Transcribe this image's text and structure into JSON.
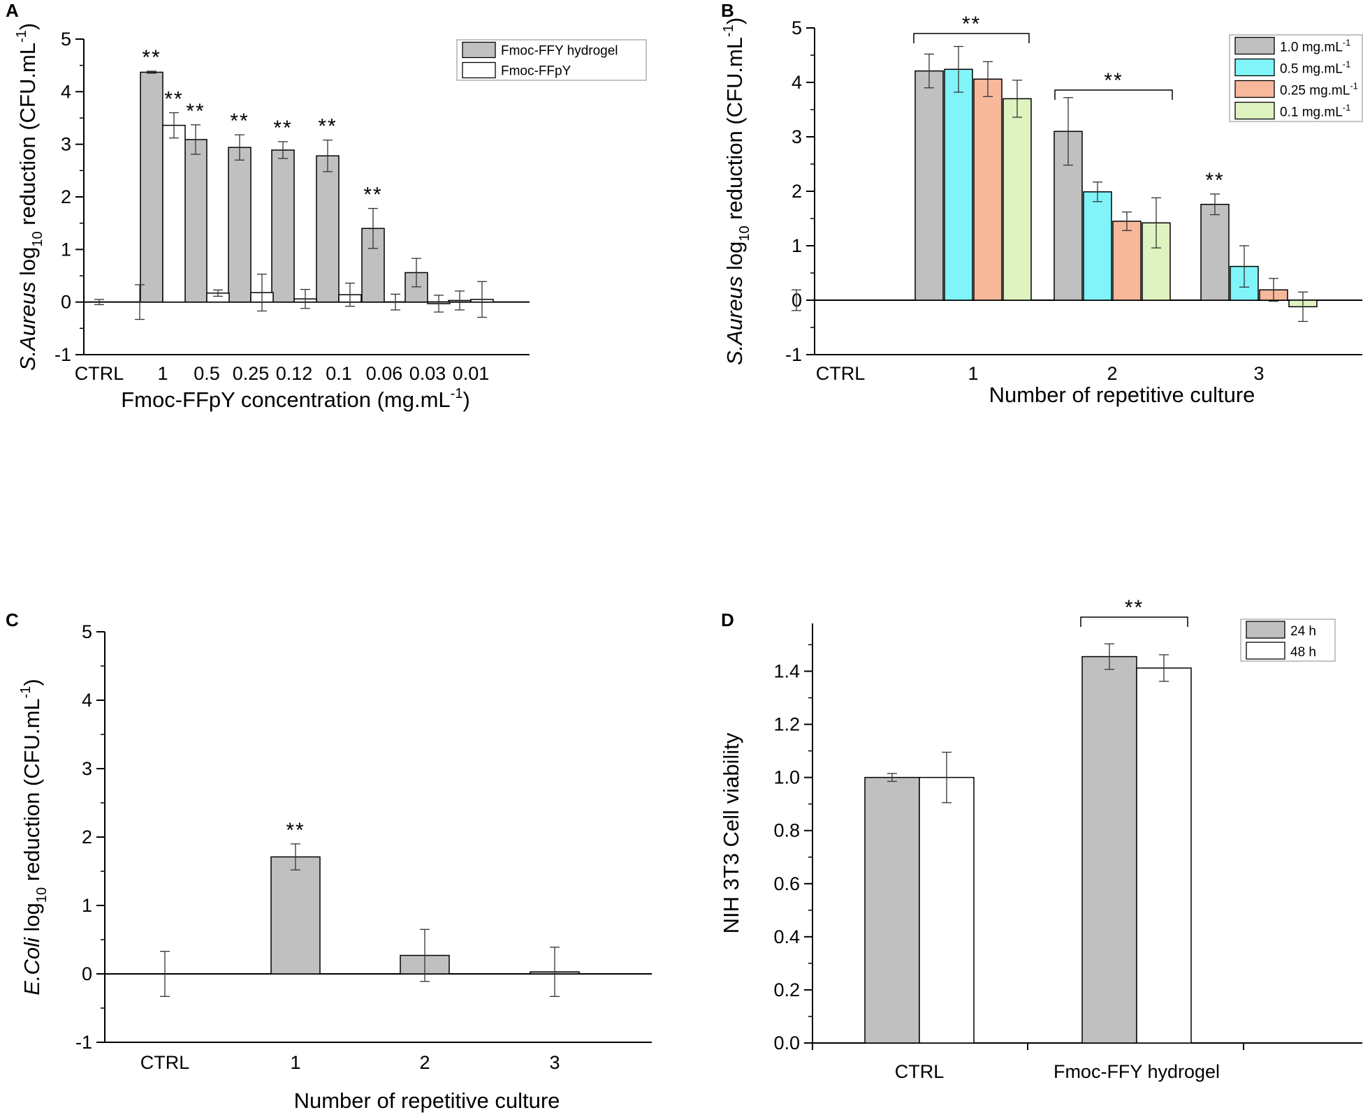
{
  "chart_data": [
    {
      "panel": "A",
      "type": "bar",
      "title": "",
      "xlabel": "Fmoc-FFpY concentration (mg.mL",
      "xlabel_sup": "-1",
      "xlabel_tail": ")",
      "ylabel_italic": "S.Aureus",
      "ylabel_mid": " log",
      "ylabel_sub": "10",
      "ylabel_tail": " reduction (CFU.mL",
      "ylabel_sup": "-1",
      "ylabel_end": ")",
      "ylim": [
        -1,
        5
      ],
      "yticks": [
        -1,
        0,
        1,
        2,
        3,
        4,
        5
      ],
      "legend_position": "top-right",
      "categories": [
        "CTRL",
        "1",
        "0.5",
        "0.25",
        "0.12",
        "0.1",
        "0.06",
        "0.03",
        "0.01"
      ],
      "series": [
        {
          "name": "Fmoc-FFY hydrogel",
          "color": "#c0c0c0",
          "values": [
            0.0,
            4.37,
            3.09,
            2.94,
            2.89,
            2.78,
            1.4,
            0.56,
            0.03
          ],
          "errors": [
            0.05,
            0.02,
            0.28,
            0.24,
            0.16,
            0.3,
            0.38,
            0.27,
            0.18
          ]
        },
        {
          "name": "Fmoc-FFpY",
          "color": "#ffffff",
          "values": [
            0.0,
            3.36,
            0.17,
            0.18,
            0.06,
            0.14,
            0.0,
            -0.03,
            0.05
          ],
          "errors": [
            0.33,
            0.24,
            0.06,
            0.35,
            0.18,
            0.22,
            0.15,
            0.16,
            0.34
          ]
        }
      ],
      "significance": [
        {
          "category_index": 1,
          "series_index": 0,
          "label": "**"
        },
        {
          "category_index": 1,
          "series_index": 1,
          "label": "**"
        },
        {
          "category_index": 2,
          "series_index": 0,
          "label": "**"
        },
        {
          "category_index": 3,
          "series_index": 0,
          "label": "**"
        },
        {
          "category_index": 4,
          "series_index": 0,
          "label": "**"
        },
        {
          "category_index": 5,
          "series_index": 0,
          "label": "**"
        },
        {
          "category_index": 6,
          "series_index": 0,
          "label": "**"
        }
      ]
    },
    {
      "panel": "B",
      "type": "bar",
      "title": "",
      "xlabel": "Number of repetitive culture",
      "ylabel_italic": "S.Aureus",
      "ylabel_mid": " log",
      "ylabel_sub": "10",
      "ylabel_tail": " reduction (CFU.mL",
      "ylabel_sup": "-1",
      "ylabel_end": ")",
      "ylim": [
        -1,
        5
      ],
      "yticks": [
        -1,
        0,
        1,
        2,
        3,
        4,
        5
      ],
      "legend_position": "top-right",
      "categories": [
        "CTRL",
        "1",
        "2",
        "3"
      ],
      "series": [
        {
          "name": "1.0 mg.mL",
          "sup": "-1",
          "color": "#c0c0c0",
          "values": [
            0.0,
            4.21,
            3.1,
            1.76
          ],
          "errors": [
            0.19,
            0.31,
            0.62,
            0.19
          ]
        },
        {
          "name": "0.5 mg.mL",
          "sup": "-1",
          "color": "#80f4f8",
          "values": [
            null,
            4.24,
            1.99,
            0.62
          ],
          "errors": [
            null,
            0.42,
            0.18,
            0.38
          ]
        },
        {
          "name": "0.25 mg.mL",
          "sup": "-1",
          "color": "#f8b89c",
          "values": [
            null,
            4.06,
            1.45,
            0.19
          ],
          "errors": [
            null,
            0.32,
            0.17,
            0.21
          ]
        },
        {
          "name": "0.1 mg.mL",
          "sup": "-1",
          "color": "#def3c0",
          "values": [
            null,
            3.7,
            1.42,
            -0.12
          ],
          "errors": [
            null,
            0.34,
            0.46,
            0.27
          ]
        }
      ],
      "significance": [
        {
          "bracket_categories": [
            1
          ],
          "label": "**"
        },
        {
          "bracket_categories": [
            2
          ],
          "label": "**"
        },
        {
          "category_index": 3,
          "series_index": 0,
          "label": "**"
        }
      ]
    },
    {
      "panel": "C",
      "type": "bar",
      "title": "",
      "xlabel": "Number of repetitive culture",
      "ylabel_italic": "E.Coli",
      "ylabel_mid": " log",
      "ylabel_sub": "10",
      "ylabel_tail": " reduction (CFU.mL",
      "ylabel_sup": "-1",
      "ylabel_end": ")",
      "ylim": [
        -1,
        5
      ],
      "yticks": [
        -1,
        0,
        1,
        2,
        3,
        4,
        5
      ],
      "categories": [
        "CTRL",
        "1",
        "2",
        "3"
      ],
      "series": [
        {
          "name": "E.Coli",
          "color": "#c0c0c0",
          "values": [
            0.0,
            1.71,
            0.27,
            0.03
          ],
          "errors": [
            0.33,
            0.19,
            0.38,
            0.36
          ]
        }
      ],
      "significance": [
        {
          "category_index": 1,
          "series_index": 0,
          "label": "**"
        }
      ]
    },
    {
      "panel": "D",
      "type": "bar",
      "title": "",
      "xlabel": "",
      "ylabel": "NIH 3T3 Cell viability",
      "ylim": [
        0,
        1.58
      ],
      "yticks": [
        0.0,
        0.2,
        0.4,
        0.6,
        0.8,
        1.0,
        1.2,
        1.4
      ],
      "ytick_labels": [
        "0.0",
        "0.2",
        "0.4",
        "0.6",
        "0.8",
        "1.0",
        "1.2",
        "1.4"
      ],
      "legend_position": "top-right",
      "categories": [
        "CTRL",
        "Fmoc-FFY hydrogel"
      ],
      "series": [
        {
          "name": "24 h",
          "color": "#c0c0c0",
          "values": [
            1.0,
            1.455
          ],
          "errors": [
            0.015,
            0.048
          ]
        },
        {
          "name": "48 h",
          "color": "#ffffff",
          "values": [
            1.0,
            1.412
          ],
          "errors": [
            0.095,
            0.05
          ]
        }
      ],
      "significance": [
        {
          "bracket_categories": [
            1
          ],
          "label": "**"
        }
      ]
    }
  ]
}
